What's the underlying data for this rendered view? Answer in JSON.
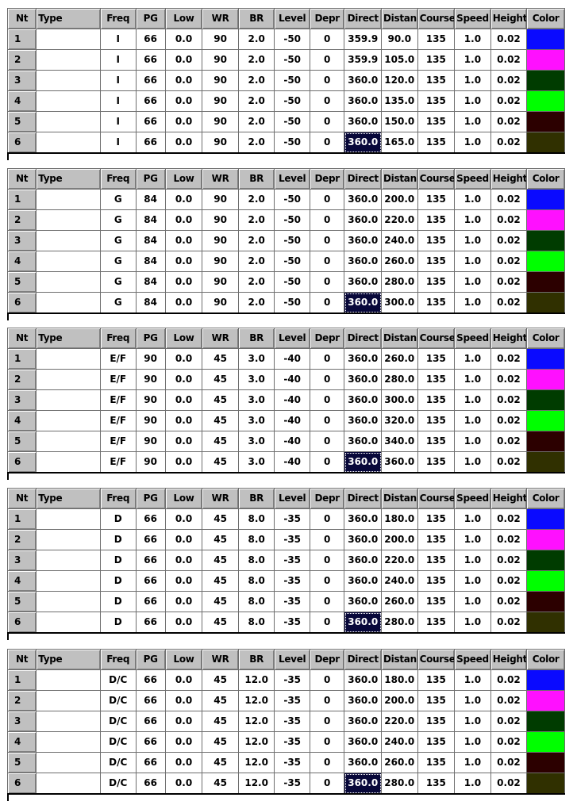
{
  "columns": [
    "Nt",
    "Type",
    "Freq",
    "PG",
    "Low",
    "WR",
    "BR",
    "Level",
    "Depr",
    "Direct",
    "Distan",
    "Course",
    "Speed",
    "Height",
    "Color"
  ],
  "colors": [
    "#0a0aff",
    "#ff10ff",
    "#003c00",
    "#00ff00",
    "#2c0000",
    "#303000"
  ],
  "tables": [
    {
      "rows": [
        {
          "nt": "1",
          "type": "",
          "freq": "I",
          "pg": "66",
          "low": "0.0",
          "wr": "90",
          "br": "2.0",
          "level": "-50",
          "depr": "0",
          "direct": "359.9",
          "distan": "90.0",
          "course": "135",
          "speed": "1.0",
          "height": "0.02"
        },
        {
          "nt": "2",
          "type": "",
          "freq": "I",
          "pg": "66",
          "low": "0.0",
          "wr": "90",
          "br": "2.0",
          "level": "-50",
          "depr": "0",
          "direct": "359.9",
          "distan": "105.0",
          "course": "135",
          "speed": "1.0",
          "height": "0.02"
        },
        {
          "nt": "3",
          "type": "",
          "freq": "I",
          "pg": "66",
          "low": "0.0",
          "wr": "90",
          "br": "2.0",
          "level": "-50",
          "depr": "0",
          "direct": "360.0",
          "distan": "120.0",
          "course": "135",
          "speed": "1.0",
          "height": "0.02"
        },
        {
          "nt": "4",
          "type": "",
          "freq": "I",
          "pg": "66",
          "low": "0.0",
          "wr": "90",
          "br": "2.0",
          "level": "-50",
          "depr": "0",
          "direct": "360.0",
          "distan": "135.0",
          "course": "135",
          "speed": "1.0",
          "height": "0.02"
        },
        {
          "nt": "5",
          "type": "",
          "freq": "I",
          "pg": "66",
          "low": "0.0",
          "wr": "90",
          "br": "2.0",
          "level": "-50",
          "depr": "0",
          "direct": "360.0",
          "distan": "150.0",
          "course": "135",
          "speed": "1.0",
          "height": "0.02"
        },
        {
          "nt": "6",
          "type": "",
          "freq": "I",
          "pg": "66",
          "low": "0.0",
          "wr": "90",
          "br": "2.0",
          "level": "-50",
          "depr": "0",
          "direct": "360.0",
          "distan": "165.0",
          "course": "135",
          "speed": "1.0",
          "height": "0.02"
        }
      ]
    },
    {
      "rows": [
        {
          "nt": "1",
          "type": "",
          "freq": "G",
          "pg": "84",
          "low": "0.0",
          "wr": "90",
          "br": "2.0",
          "level": "-50",
          "depr": "0",
          "direct": "360.0",
          "distan": "200.0",
          "course": "135",
          "speed": "1.0",
          "height": "0.02"
        },
        {
          "nt": "2",
          "type": "",
          "freq": "G",
          "pg": "84",
          "low": "0.0",
          "wr": "90",
          "br": "2.0",
          "level": "-50",
          "depr": "0",
          "direct": "360.0",
          "distan": "220.0",
          "course": "135",
          "speed": "1.0",
          "height": "0.02"
        },
        {
          "nt": "3",
          "type": "",
          "freq": "G",
          "pg": "84",
          "low": "0.0",
          "wr": "90",
          "br": "2.0",
          "level": "-50",
          "depr": "0",
          "direct": "360.0",
          "distan": "240.0",
          "course": "135",
          "speed": "1.0",
          "height": "0.02"
        },
        {
          "nt": "4",
          "type": "",
          "freq": "G",
          "pg": "84",
          "low": "0.0",
          "wr": "90",
          "br": "2.0",
          "level": "-50",
          "depr": "0",
          "direct": "360.0",
          "distan": "260.0",
          "course": "135",
          "speed": "1.0",
          "height": "0.02"
        },
        {
          "nt": "5",
          "type": "",
          "freq": "G",
          "pg": "84",
          "low": "0.0",
          "wr": "90",
          "br": "2.0",
          "level": "-50",
          "depr": "0",
          "direct": "360.0",
          "distan": "280.0",
          "course": "135",
          "speed": "1.0",
          "height": "0.02"
        },
        {
          "nt": "6",
          "type": "",
          "freq": "G",
          "pg": "84",
          "low": "0.0",
          "wr": "90",
          "br": "2.0",
          "level": "-50",
          "depr": "0",
          "direct": "360.0",
          "distan": "300.0",
          "course": "135",
          "speed": "1.0",
          "height": "0.02"
        }
      ]
    },
    {
      "rows": [
        {
          "nt": "1",
          "type": "",
          "freq": "E/F",
          "pg": "90",
          "low": "0.0",
          "wr": "45",
          "br": "3.0",
          "level": "-40",
          "depr": "0",
          "direct": "360.0",
          "distan": "260.0",
          "course": "135",
          "speed": "1.0",
          "height": "0.02"
        },
        {
          "nt": "2",
          "type": "",
          "freq": "E/F",
          "pg": "90",
          "low": "0.0",
          "wr": "45",
          "br": "3.0",
          "level": "-40",
          "depr": "0",
          "direct": "360.0",
          "distan": "280.0",
          "course": "135",
          "speed": "1.0",
          "height": "0.02"
        },
        {
          "nt": "3",
          "type": "",
          "freq": "E/F",
          "pg": "90",
          "low": "0.0",
          "wr": "45",
          "br": "3.0",
          "level": "-40",
          "depr": "0",
          "direct": "360.0",
          "distan": "300.0",
          "course": "135",
          "speed": "1.0",
          "height": "0.02"
        },
        {
          "nt": "4",
          "type": "",
          "freq": "E/F",
          "pg": "90",
          "low": "0.0",
          "wr": "45",
          "br": "3.0",
          "level": "-40",
          "depr": "0",
          "direct": "360.0",
          "distan": "320.0",
          "course": "135",
          "speed": "1.0",
          "height": "0.02"
        },
        {
          "nt": "5",
          "type": "",
          "freq": "E/F",
          "pg": "90",
          "low": "0.0",
          "wr": "45",
          "br": "3.0",
          "level": "-40",
          "depr": "0",
          "direct": "360.0",
          "distan": "340.0",
          "course": "135",
          "speed": "1.0",
          "height": "0.02"
        },
        {
          "nt": "6",
          "type": "",
          "freq": "E/F",
          "pg": "90",
          "low": "0.0",
          "wr": "45",
          "br": "3.0",
          "level": "-40",
          "depr": "0",
          "direct": "360.0",
          "distan": "360.0",
          "course": "135",
          "speed": "1.0",
          "height": "0.02"
        }
      ]
    },
    {
      "rows": [
        {
          "nt": "1",
          "type": "",
          "freq": "D",
          "pg": "66",
          "low": "0.0",
          "wr": "45",
          "br": "8.0",
          "level": "-35",
          "depr": "0",
          "direct": "360.0",
          "distan": "180.0",
          "course": "135",
          "speed": "1.0",
          "height": "0.02"
        },
        {
          "nt": "2",
          "type": "",
          "freq": "D",
          "pg": "66",
          "low": "0.0",
          "wr": "45",
          "br": "8.0",
          "level": "-35",
          "depr": "0",
          "direct": "360.0",
          "distan": "200.0",
          "course": "135",
          "speed": "1.0",
          "height": "0.02"
        },
        {
          "nt": "3",
          "type": "",
          "freq": "D",
          "pg": "66",
          "low": "0.0",
          "wr": "45",
          "br": "8.0",
          "level": "-35",
          "depr": "0",
          "direct": "360.0",
          "distan": "220.0",
          "course": "135",
          "speed": "1.0",
          "height": "0.02"
        },
        {
          "nt": "4",
          "type": "",
          "freq": "D",
          "pg": "66",
          "low": "0.0",
          "wr": "45",
          "br": "8.0",
          "level": "-35",
          "depr": "0",
          "direct": "360.0",
          "distan": "240.0",
          "course": "135",
          "speed": "1.0",
          "height": "0.02"
        },
        {
          "nt": "5",
          "type": "",
          "freq": "D",
          "pg": "66",
          "low": "0.0",
          "wr": "45",
          "br": "8.0",
          "level": "-35",
          "depr": "0",
          "direct": "360.0",
          "distan": "260.0",
          "course": "135",
          "speed": "1.0",
          "height": "0.02"
        },
        {
          "nt": "6",
          "type": "",
          "freq": "D",
          "pg": "66",
          "low": "0.0",
          "wr": "45",
          "br": "8.0",
          "level": "-35",
          "depr": "0",
          "direct": "360.0",
          "distan": "280.0",
          "course": "135",
          "speed": "1.0",
          "height": "0.02"
        }
      ]
    },
    {
      "rows": [
        {
          "nt": "1",
          "type": "",
          "freq": "D/C",
          "pg": "66",
          "low": "0.0",
          "wr": "45",
          "br": "12.0",
          "level": "-35",
          "depr": "0",
          "direct": "360.0",
          "distan": "180.0",
          "course": "135",
          "speed": "1.0",
          "height": "0.02"
        },
        {
          "nt": "2",
          "type": "",
          "freq": "D/C",
          "pg": "66",
          "low": "0.0",
          "wr": "45",
          "br": "12.0",
          "level": "-35",
          "depr": "0",
          "direct": "360.0",
          "distan": "200.0",
          "course": "135",
          "speed": "1.0",
          "height": "0.02"
        },
        {
          "nt": "3",
          "type": "",
          "freq": "D/C",
          "pg": "66",
          "low": "0.0",
          "wr": "45",
          "br": "12.0",
          "level": "-35",
          "depr": "0",
          "direct": "360.0",
          "distan": "220.0",
          "course": "135",
          "speed": "1.0",
          "height": "0.02"
        },
        {
          "nt": "4",
          "type": "",
          "freq": "D/C",
          "pg": "66",
          "low": "0.0",
          "wr": "45",
          "br": "12.0",
          "level": "-35",
          "depr": "0",
          "direct": "360.0",
          "distan": "240.0",
          "course": "135",
          "speed": "1.0",
          "height": "0.02"
        },
        {
          "nt": "5",
          "type": "",
          "freq": "D/C",
          "pg": "66",
          "low": "0.0",
          "wr": "45",
          "br": "12.0",
          "level": "-35",
          "depr": "0",
          "direct": "360.0",
          "distan": "260.0",
          "course": "135",
          "speed": "1.0",
          "height": "0.02"
        },
        {
          "nt": "6",
          "type": "",
          "freq": "D/C",
          "pg": "66",
          "low": "0.0",
          "wr": "45",
          "br": "12.0",
          "level": "-35",
          "depr": "0",
          "direct": "360.0",
          "distan": "280.0",
          "course": "135",
          "speed": "1.0",
          "height": "0.02"
        }
      ]
    }
  ]
}
